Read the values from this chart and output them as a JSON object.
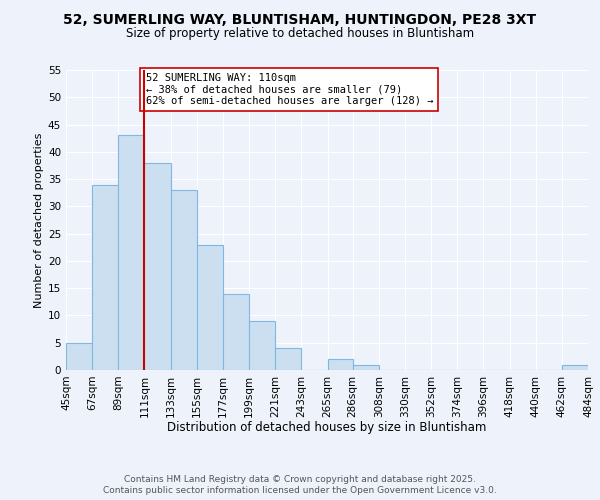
{
  "title": "52, SUMERLING WAY, BLUNTISHAM, HUNTINGDON, PE28 3XT",
  "subtitle": "Size of property relative to detached houses in Bluntisham",
  "xlabel": "Distribution of detached houses by size in Bluntisham",
  "ylabel": "Number of detached properties",
  "bin_edges": [
    45,
    67,
    89,
    111,
    133,
    155,
    177,
    199,
    221,
    243,
    265,
    286,
    308,
    330,
    352,
    374,
    396,
    418,
    440,
    462,
    484
  ],
  "bin_counts": [
    5,
    34,
    43,
    38,
    33,
    23,
    14,
    9,
    4,
    0,
    2,
    1,
    0,
    0,
    0,
    0,
    0,
    0,
    0,
    1
  ],
  "bar_color": "#ccdff0",
  "bar_edgecolor": "#7fb8e0",
  "bar_linewidth": 0.8,
  "vline_x": 111,
  "vline_color": "#cc0000",
  "vline_linewidth": 1.5,
  "annotation_text": "52 SUMERLING WAY: 110sqm\n← 38% of detached houses are smaller (79)\n62% of semi-detached houses are larger (128) →",
  "annotation_box_color": "white",
  "annotation_box_edgecolor": "#cc0000",
  "annotation_fontsize": 7.5,
  "ylim": [
    0,
    55
  ],
  "yticks": [
    0,
    5,
    10,
    15,
    20,
    25,
    30,
    35,
    40,
    45,
    50,
    55
  ],
  "tick_labels": [
    "45sqm",
    "67sqm",
    "89sqm",
    "111sqm",
    "133sqm",
    "155sqm",
    "177sqm",
    "199sqm",
    "221sqm",
    "243sqm",
    "265sqm",
    "286sqm",
    "308sqm",
    "330sqm",
    "352sqm",
    "374sqm",
    "396sqm",
    "418sqm",
    "440sqm",
    "462sqm",
    "484sqm"
  ],
  "footer1": "Contains HM Land Registry data © Crown copyright and database right 2025.",
  "footer2": "Contains public sector information licensed under the Open Government Licence v3.0.",
  "bg_color": "#eef2fb",
  "grid_color": "#ffffff",
  "title_fontsize": 10,
  "subtitle_fontsize": 8.5,
  "axis_label_fontsize": 8.5,
  "tick_fontsize": 7.5,
  "ylabel_fontsize": 8,
  "footer_fontsize": 6.5
}
